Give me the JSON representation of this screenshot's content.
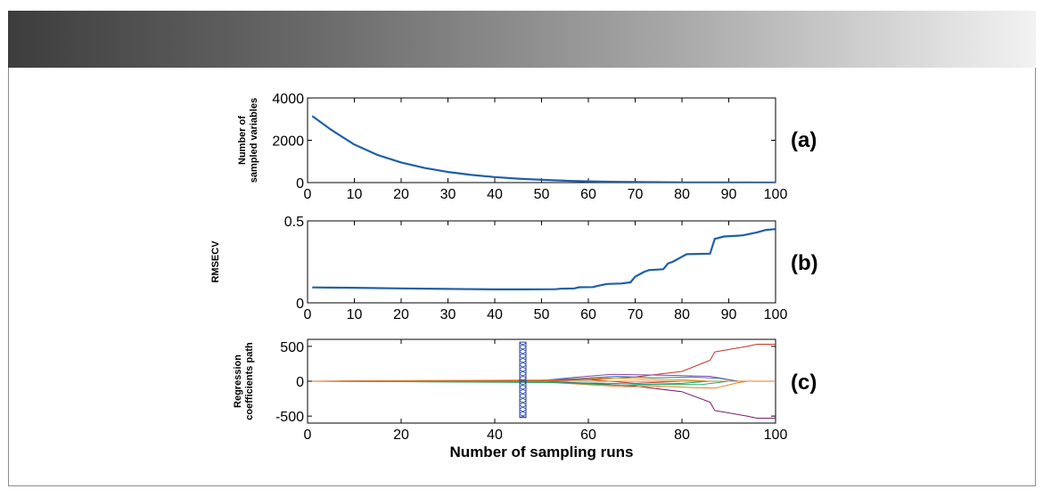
{
  "chart_data": [
    {
      "type": "line",
      "panel_label": "(a)",
      "ylabel_lines": [
        "Number of",
        "sampled variables"
      ],
      "xlabel": "",
      "xlim": [
        0,
        100
      ],
      "ylim": [
        0,
        4000
      ],
      "xticks": [
        0,
        10,
        20,
        30,
        40,
        50,
        60,
        70,
        80,
        90,
        100
      ],
      "yticks": [
        0,
        2000,
        4000
      ],
      "series": [
        {
          "color": "#1f5fa8",
          "x": [
            1,
            5,
            10,
            15,
            20,
            25,
            30,
            35,
            40,
            45,
            50,
            55,
            60,
            65,
            70,
            80,
            90,
            100
          ],
          "y": [
            3150,
            2500,
            1800,
            1300,
            950,
            690,
            500,
            360,
            260,
            185,
            130,
            90,
            60,
            40,
            25,
            10,
            5,
            2
          ]
        }
      ]
    },
    {
      "type": "line",
      "panel_label": "(b)",
      "ylabel_lines": [
        "RMSECV"
      ],
      "xlabel": "",
      "xlim": [
        0,
        100
      ],
      "ylim": [
        0,
        0.5
      ],
      "xticks": [
        0,
        10,
        20,
        30,
        40,
        50,
        60,
        70,
        80,
        90,
        100
      ],
      "yticks": [
        0,
        0.5
      ],
      "series": [
        {
          "color": "#1f5fa8",
          "x": [
            1,
            10,
            20,
            30,
            40,
            46,
            53,
            54,
            57,
            58,
            61,
            62,
            64,
            67,
            69,
            70,
            72,
            73,
            76,
            77,
            78,
            81,
            86,
            87,
            89,
            92,
            93,
            96,
            98,
            100
          ],
          "y": [
            0.094,
            0.092,
            0.088,
            0.085,
            0.082,
            0.082,
            0.083,
            0.086,
            0.088,
            0.095,
            0.096,
            0.104,
            0.115,
            0.118,
            0.125,
            0.16,
            0.19,
            0.2,
            0.205,
            0.24,
            0.25,
            0.297,
            0.3,
            0.39,
            0.405,
            0.41,
            0.412,
            0.43,
            0.445,
            0.45
          ]
        }
      ]
    },
    {
      "type": "line",
      "panel_label": "(c)",
      "ylabel_lines": [
        "Regression",
        "coefficients path"
      ],
      "xlabel": "Number of sampling runs",
      "xlim": [
        0,
        100
      ],
      "ylim": [
        -600,
        600
      ],
      "xticks": [
        0,
        20,
        40,
        60,
        80,
        100
      ],
      "yticks": [
        -500,
        0,
        500
      ],
      "marker_line": {
        "x": 46,
        "y_range": [
          -520,
          560
        ],
        "color": "#1f3fa8"
      },
      "series": [
        {
          "color": "#c0392b",
          "x": [
            1,
            45,
            55,
            62,
            70,
            80,
            86,
            87,
            94,
            96,
            100
          ],
          "y": [
            0,
            5,
            15,
            30,
            60,
            140,
            300,
            420,
            500,
            530,
            530
          ]
        },
        {
          "color": "#7a1f6e",
          "x": [
            1,
            45,
            55,
            62,
            70,
            80,
            86,
            87,
            94,
            96,
            100
          ],
          "y": [
            0,
            -5,
            -15,
            -35,
            -70,
            -150,
            -300,
            -420,
            -500,
            -530,
            -530
          ]
        },
        {
          "color": "#8e44ad",
          "x": [
            1,
            50,
            58,
            65,
            72,
            80,
            86,
            92,
            94
          ],
          "y": [
            0,
            10,
            60,
            100,
            90,
            80,
            70,
            0,
            0
          ]
        },
        {
          "color": "#e67e22",
          "x": [
            1,
            50,
            60,
            68,
            75,
            82,
            87,
            92,
            94
          ],
          "y": [
            0,
            -10,
            -50,
            -80,
            -70,
            -90,
            -100,
            -20,
            0
          ]
        },
        {
          "color": "#2c7fb8",
          "x": [
            1,
            50,
            58,
            66,
            74,
            82,
            88,
            92
          ],
          "y": [
            0,
            15,
            40,
            70,
            50,
            60,
            40,
            0
          ]
        },
        {
          "color": "#27ae60",
          "x": [
            1,
            52,
            60,
            68,
            76,
            84,
            90
          ],
          "y": [
            0,
            -15,
            -40,
            -60,
            -45,
            -50,
            0
          ]
        },
        {
          "color": "#d4a017",
          "x": [
            1,
            55,
            64,
            72,
            80,
            86
          ],
          "y": [
            0,
            20,
            50,
            30,
            20,
            0
          ]
        },
        {
          "color": "#16a085",
          "x": [
            1,
            55,
            65,
            72,
            80,
            86
          ],
          "y": [
            0,
            -20,
            -30,
            -45,
            -30,
            0
          ]
        },
        {
          "color": "#c0392b",
          "x": [
            1,
            50,
            60,
            70,
            80
          ],
          "y": [
            0,
            8,
            25,
            -30,
            0
          ]
        },
        {
          "color": "#e67e22",
          "x": [
            1,
            100
          ],
          "y": [
            0,
            0
          ]
        }
      ]
    }
  ]
}
